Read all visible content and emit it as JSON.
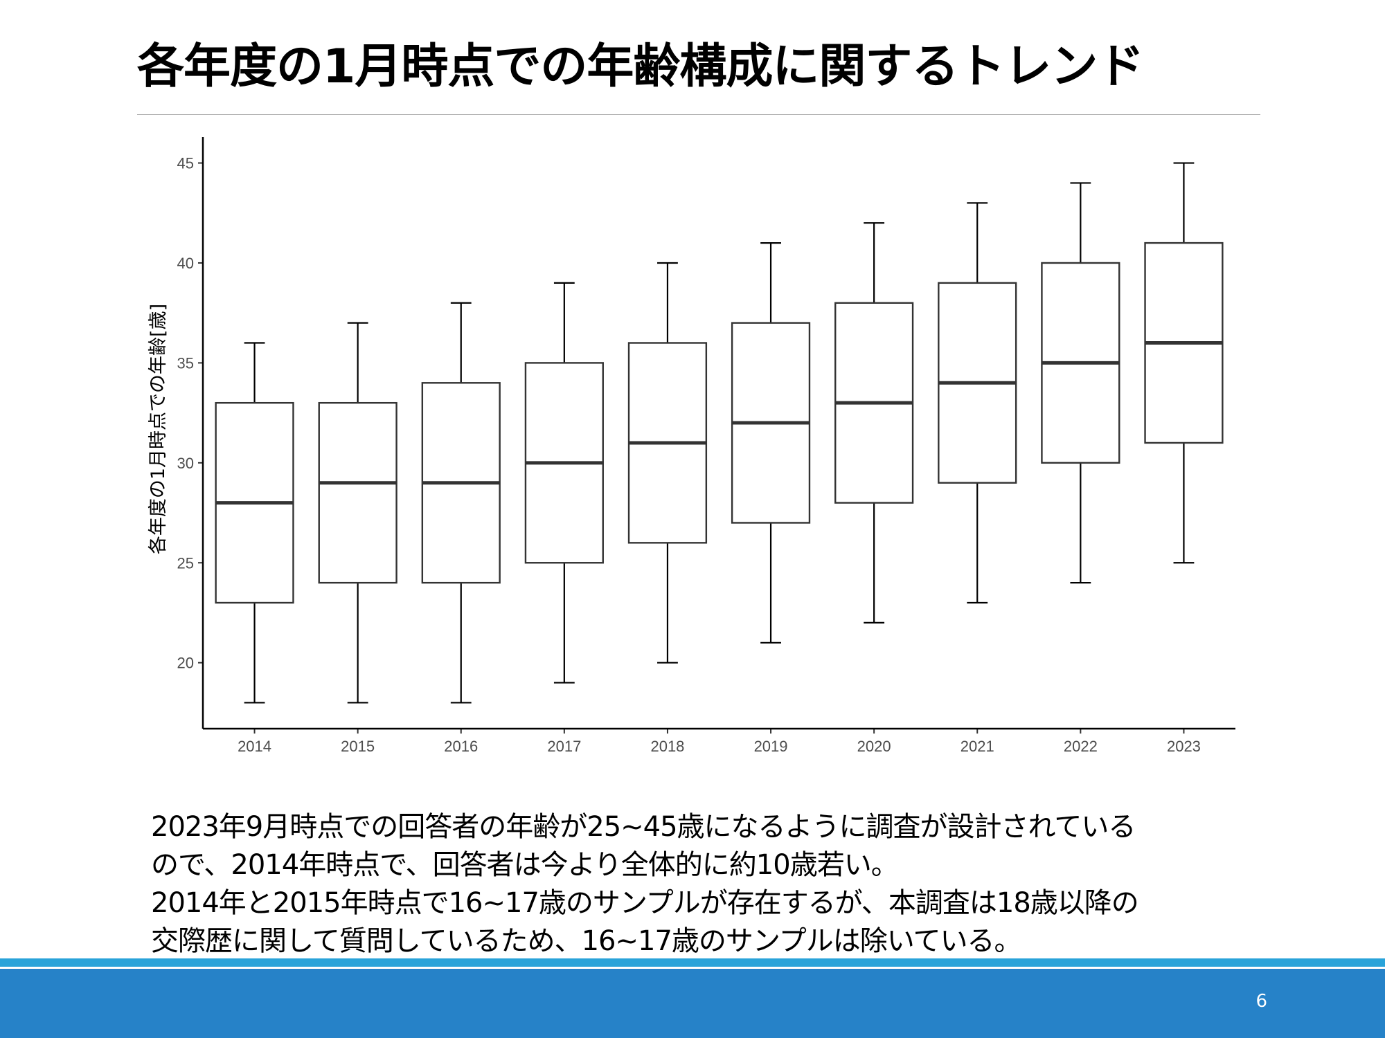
{
  "slide": {
    "title": "各年度の1月時点での年齢構成に関するトレンド",
    "page_number": "6",
    "notes": [
      "2023年9月時点での回答者の年齢が25~45歳になるように調査が設計されている",
      "ので、2014年時点で、回答者は今より全体的に約10歳若い。",
      "2014年と2015年時点で16~17歳のサンプルが存在するが、本調査は18歳以降の",
      "交際歴に関して質問しているため、16~17歳のサンプルは除いている。"
    ]
  },
  "colors": {
    "footer_bar": "#2682c8",
    "footer_stripe": "#29a3d9",
    "box_stroke": "#333333",
    "axis": "#000000"
  },
  "chart_data": {
    "type": "boxplot",
    "title": "",
    "xlabel": "",
    "ylabel": "各年度の1月時点での年齢[歳]",
    "categories": [
      "2014",
      "2015",
      "2016",
      "2017",
      "2018",
      "2019",
      "2020",
      "2021",
      "2022",
      "2023"
    ],
    "boxes": [
      {
        "min": 18,
        "q1": 23,
        "median": 28,
        "q3": 33,
        "max": 36
      },
      {
        "min": 18,
        "q1": 24,
        "median": 29,
        "q3": 33,
        "max": 37
      },
      {
        "min": 18,
        "q1": 24,
        "median": 29,
        "q3": 34,
        "max": 38
      },
      {
        "min": 19,
        "q1": 25,
        "median": 30,
        "q3": 35,
        "max": 39
      },
      {
        "min": 20,
        "q1": 26,
        "median": 31,
        "q3": 36,
        "max": 40
      },
      {
        "min": 21,
        "q1": 27,
        "median": 32,
        "q3": 37,
        "max": 41
      },
      {
        "min": 22,
        "q1": 28,
        "median": 33,
        "q3": 38,
        "max": 42
      },
      {
        "min": 23,
        "q1": 29,
        "median": 34,
        "q3": 39,
        "max": 43
      },
      {
        "min": 24,
        "q1": 30,
        "median": 35,
        "q3": 40,
        "max": 44
      },
      {
        "min": 25,
        "q1": 31,
        "median": 36,
        "q3": 41,
        "max": 45
      }
    ],
    "yticks": [
      20,
      25,
      30,
      35,
      40,
      45
    ],
    "ylim": [
      16.7,
      46.3
    ],
    "grid": false,
    "legend": "none"
  }
}
